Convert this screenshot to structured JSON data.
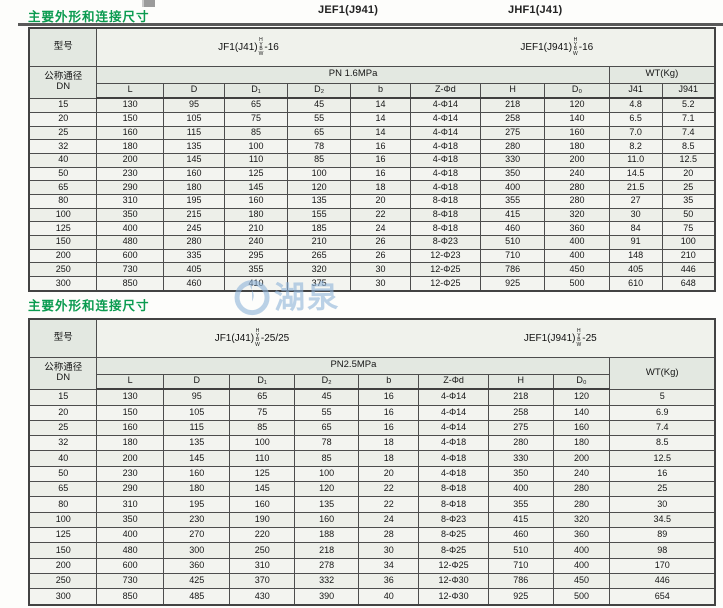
{
  "page": {
    "header_center": "JEF1(J941)",
    "header_right": "JHF1(J41)",
    "watermark": "湖泉"
  },
  "colors": {
    "title_green": "#0b9b50",
    "header_bg": "#e3e8e1",
    "row_bg": "#f3f4f0",
    "border": "#4d4d4d",
    "watermark_blue": "#8fb4d9"
  },
  "sections": [
    {
      "title": "主要外形和连接尺寸"
    },
    {
      "title": "主要外形和连接尺寸"
    }
  ],
  "tables": [
    {
      "model_label": "型号",
      "models": [
        {
          "prefix": "JF1(J41)",
          "seal_codes": [
            "H",
            "Y",
            "B",
            "W"
          ],
          "suffix": "-16"
        },
        {
          "prefix": "JEF1(J941)",
          "seal_codes": [
            "H",
            "Y",
            "B",
            "W"
          ],
          "suffix": "-16"
        }
      ],
      "dn_label1": "公称通径",
      "dn_label2": "DN",
      "group1": "PN 1.6MPa",
      "group2": "WT(Kg)",
      "columns": [
        "L",
        "D",
        "D₁",
        "D₂",
        "b",
        "Z-Φd",
        "H",
        "D₀",
        "J41",
        "J941"
      ],
      "rows": [
        [
          "15",
          "130",
          "95",
          "65",
          "45",
          "14",
          "4-Φ14",
          "218",
          "120",
          "4.8",
          "5.2"
        ],
        [
          "20",
          "150",
          "105",
          "75",
          "55",
          "14",
          "4-Φ14",
          "258",
          "140",
          "6.5",
          "7.1"
        ],
        [
          "25",
          "160",
          "115",
          "85",
          "65",
          "14",
          "4-Φ14",
          "275",
          "160",
          "7.0",
          "7.4"
        ],
        [
          "32",
          "180",
          "135",
          "100",
          "78",
          "16",
          "4-Φ18",
          "280",
          "180",
          "8.2",
          "8.5"
        ],
        [
          "40",
          "200",
          "145",
          "110",
          "85",
          "16",
          "4-Φ18",
          "330",
          "200",
          "11.0",
          "12.5"
        ],
        [
          "50",
          "230",
          "160",
          "125",
          "100",
          "16",
          "4-Φ18",
          "350",
          "240",
          "14.5",
          "20"
        ],
        [
          "65",
          "290",
          "180",
          "145",
          "120",
          "18",
          "4-Φ18",
          "400",
          "280",
          "21.5",
          "25"
        ],
        [
          "80",
          "310",
          "195",
          "160",
          "135",
          "20",
          "8-Φ18",
          "355",
          "280",
          "27",
          "35"
        ],
        [
          "100",
          "350",
          "215",
          "180",
          "155",
          "22",
          "8-Φ18",
          "415",
          "320",
          "30",
          "50"
        ],
        [
          "125",
          "400",
          "245",
          "210",
          "185",
          "24",
          "8-Φ18",
          "460",
          "360",
          "84",
          "75"
        ],
        [
          "150",
          "480",
          "280",
          "240",
          "210",
          "26",
          "8-Φ23",
          "510",
          "400",
          "91",
          "100"
        ],
        [
          "200",
          "600",
          "335",
          "295",
          "265",
          "26",
          "12-Φ23",
          "710",
          "400",
          "148",
          "210"
        ],
        [
          "250",
          "730",
          "405",
          "355",
          "320",
          "30",
          "12-Φ25",
          "786",
          "450",
          "405",
          "446"
        ],
        [
          "300",
          "850",
          "460",
          "410",
          "375",
          "30",
          "12-Φ25",
          "925",
          "500",
          "610",
          "648"
        ]
      ]
    },
    {
      "model_label": "型号",
      "models": [
        {
          "prefix": "JF1(J41)",
          "seal_codes": [
            "H",
            "Y",
            "B",
            "W"
          ],
          "suffix": "-25/25"
        },
        {
          "prefix": "JEF1(J941)",
          "seal_codes": [
            "H",
            "Y",
            "B",
            "W"
          ],
          "suffix": "-25"
        }
      ],
      "dn_label1": "公称通径",
      "dn_label2": "DN",
      "group1": "PN2.5MPa",
      "group2": "WT(Kg)",
      "columns": [
        "L",
        "D",
        "D₁",
        "D₂",
        "b",
        "Z-Φd",
        "H",
        "D₀"
      ],
      "rows": [
        [
          "15",
          "130",
          "95",
          "65",
          "45",
          "16",
          "4-Φ14",
          "218",
          "120",
          "5"
        ],
        [
          "20",
          "150",
          "105",
          "75",
          "55",
          "16",
          "4-Φ14",
          "258",
          "140",
          "6.9"
        ],
        [
          "25",
          "160",
          "115",
          "85",
          "65",
          "16",
          "4-Φ14",
          "275",
          "160",
          "7.4"
        ],
        [
          "32",
          "180",
          "135",
          "100",
          "78",
          "18",
          "4-Φ18",
          "280",
          "180",
          "8.5"
        ],
        [
          "40",
          "200",
          "145",
          "110",
          "85",
          "18",
          "4-Φ18",
          "330",
          "200",
          "12.5"
        ],
        [
          "50",
          "230",
          "160",
          "125",
          "100",
          "20",
          "4-Φ18",
          "350",
          "240",
          "16"
        ],
        [
          "65",
          "290",
          "180",
          "145",
          "120",
          "22",
          "8-Φ18",
          "400",
          "280",
          "25"
        ],
        [
          "80",
          "310",
          "195",
          "160",
          "135",
          "22",
          "8-Φ18",
          "355",
          "280",
          "30"
        ],
        [
          "100",
          "350",
          "230",
          "190",
          "160",
          "24",
          "8-Φ23",
          "415",
          "320",
          "34.5"
        ],
        [
          "125",
          "400",
          "270",
          "220",
          "188",
          "28",
          "8-Φ25",
          "460",
          "360",
          "89"
        ],
        [
          "150",
          "480",
          "300",
          "250",
          "218",
          "30",
          "8-Φ25",
          "510",
          "400",
          "98"
        ],
        [
          "200",
          "600",
          "360",
          "310",
          "278",
          "34",
          "12-Φ25",
          "710",
          "400",
          "170"
        ],
        [
          "250",
          "730",
          "425",
          "370",
          "332",
          "36",
          "12-Φ30",
          "786",
          "450",
          "446"
        ],
        [
          "300",
          "850",
          "485",
          "430",
          "390",
          "40",
          "12-Φ30",
          "925",
          "500",
          "654"
        ]
      ]
    }
  ]
}
